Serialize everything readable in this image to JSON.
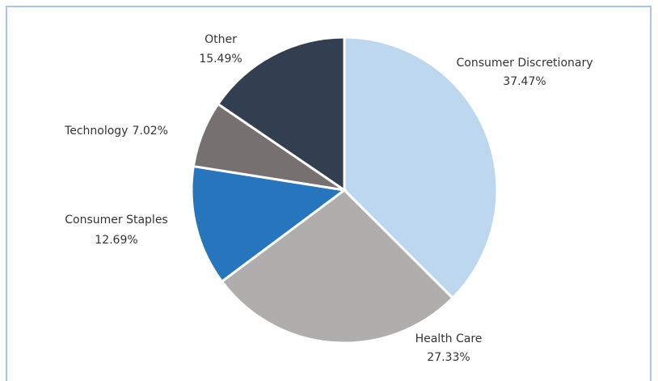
{
  "chart_data": {
    "type": "pie",
    "categories": [
      "Consumer Discretionary",
      "Health Care",
      "Consumer Staples",
      "Technology",
      "Other"
    ],
    "values": [
      37.47,
      27.33,
      12.69,
      7.02,
      15.49
    ],
    "value_labels": [
      "37.47%",
      "27.33%",
      "12.69%",
      "7.02%",
      "15.49%"
    ],
    "colors": [
      "#bdd7ee",
      "#b0adad",
      "#2776bd",
      "#767170",
      "#323f51"
    ]
  }
}
